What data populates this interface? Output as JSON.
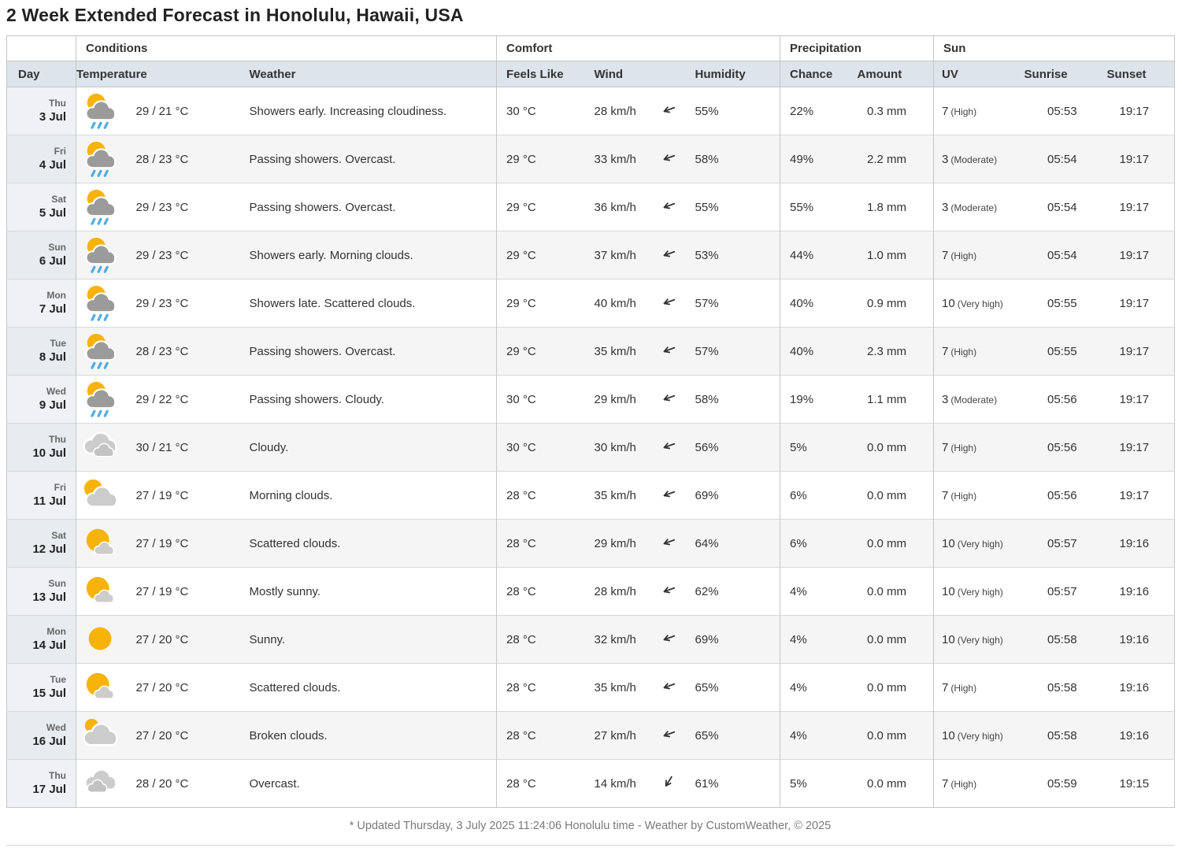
{
  "page_title": "2 Week Extended Forecast in Honolulu, Hawaii, USA",
  "colors": {
    "sun_yellow": "#F8B309",
    "cloud_dark": "#9B9B9B",
    "cloud_light": "#CCCCCC",
    "cloud_mid": "#C2C2C2",
    "rain_blue": "#4FAEE3",
    "header_bg": "#DEE4EB",
    "arrow": "#333333"
  },
  "table": {
    "group_headers": {
      "conditions": "Conditions",
      "comfort": "Comfort",
      "precipitation": "Precipitation",
      "sun": "Sun"
    },
    "columns": {
      "day": "Day",
      "temperature": "Temperature",
      "weather": "Weather",
      "feels_like": "Feels Like",
      "wind": "Wind",
      "humidity": "Humidity",
      "chance": "Chance",
      "amount": "Amount",
      "uv": "UV",
      "sunrise": "Sunrise",
      "sunset": "Sunset"
    },
    "rows": [
      {
        "day_name": "Thu",
        "date": "3 Jul",
        "icon": "showers",
        "temperature": "29 / 21 °C",
        "weather": "Showers early. Increasing cloudiness.",
        "feels_like": "30 °C",
        "wind": "28 km/h",
        "wind_arrow_rotation": -20,
        "humidity": "55%",
        "chance": "22%",
        "amount": "0.3 mm",
        "uv_value": "7",
        "uv_label": "(High)",
        "sunrise": "05:53",
        "sunset": "19:17"
      },
      {
        "day_name": "Fri",
        "date": "4 Jul",
        "icon": "showers",
        "temperature": "28 / 23 °C",
        "weather": "Passing showers. Overcast.",
        "feels_like": "29 °C",
        "wind": "33 km/h",
        "wind_arrow_rotation": -20,
        "humidity": "58%",
        "chance": "49%",
        "amount": "2.2 mm",
        "uv_value": "3",
        "uv_label": "(Moderate)",
        "sunrise": "05:54",
        "sunset": "19:17"
      },
      {
        "day_name": "Sat",
        "date": "5 Jul",
        "icon": "showers",
        "temperature": "29 / 23 °C",
        "weather": "Passing showers. Overcast.",
        "feels_like": "29 °C",
        "wind": "36 km/h",
        "wind_arrow_rotation": -20,
        "humidity": "55%",
        "chance": "55%",
        "amount": "1.8 mm",
        "uv_value": "3",
        "uv_label": "(Moderate)",
        "sunrise": "05:54",
        "sunset": "19:17"
      },
      {
        "day_name": "Sun",
        "date": "6 Jul",
        "icon": "showers",
        "temperature": "29 / 23 °C",
        "weather": "Showers early. Morning clouds.",
        "feels_like": "29 °C",
        "wind": "37 km/h",
        "wind_arrow_rotation": -20,
        "humidity": "53%",
        "chance": "44%",
        "amount": "1.0 mm",
        "uv_value": "7",
        "uv_label": "(High)",
        "sunrise": "05:54",
        "sunset": "19:17"
      },
      {
        "day_name": "Mon",
        "date": "7 Jul",
        "icon": "showers",
        "temperature": "29 / 23 °C",
        "weather": "Showers late. Scattered clouds.",
        "feels_like": "29 °C",
        "wind": "40 km/h",
        "wind_arrow_rotation": -20,
        "humidity": "57%",
        "chance": "40%",
        "amount": "0.9 mm",
        "uv_value": "10",
        "uv_label": "(Very high)",
        "sunrise": "05:55",
        "sunset": "19:17"
      },
      {
        "day_name": "Tue",
        "date": "8 Jul",
        "icon": "showers",
        "temperature": "28 / 23 °C",
        "weather": "Passing showers. Overcast.",
        "feels_like": "29 °C",
        "wind": "35 km/h",
        "wind_arrow_rotation": -20,
        "humidity": "57%",
        "chance": "40%",
        "amount": "2.3 mm",
        "uv_value": "7",
        "uv_label": "(High)",
        "sunrise": "05:55",
        "sunset": "19:17"
      },
      {
        "day_name": "Wed",
        "date": "9 Jul",
        "icon": "showers",
        "temperature": "29 / 22 °C",
        "weather": "Passing showers. Cloudy.",
        "feels_like": "30 °C",
        "wind": "29 km/h",
        "wind_arrow_rotation": -20,
        "humidity": "58%",
        "chance": "19%",
        "amount": "1.1 mm",
        "uv_value": "3",
        "uv_label": "(Moderate)",
        "sunrise": "05:56",
        "sunset": "19:17"
      },
      {
        "day_name": "Thu",
        "date": "10 Jul",
        "icon": "cloudy",
        "temperature": "30 / 21 °C",
        "weather": "Cloudy.",
        "feels_like": "30 °C",
        "wind": "30 km/h",
        "wind_arrow_rotation": -20,
        "humidity": "56%",
        "chance": "5%",
        "amount": "0.0 mm",
        "uv_value": "7",
        "uv_label": "(High)",
        "sunrise": "05:56",
        "sunset": "19:17"
      },
      {
        "day_name": "Fri",
        "date": "11 Jul",
        "icon": "morning-clouds",
        "temperature": "27 / 19 °C",
        "weather": "Morning clouds.",
        "feels_like": "28 °C",
        "wind": "35 km/h",
        "wind_arrow_rotation": -20,
        "humidity": "69%",
        "chance": "6%",
        "amount": "0.0 mm",
        "uv_value": "7",
        "uv_label": "(High)",
        "sunrise": "05:56",
        "sunset": "19:17"
      },
      {
        "day_name": "Sat",
        "date": "12 Jul",
        "icon": "sun-small-cloud",
        "temperature": "27 / 19 °C",
        "weather": "Scattered clouds.",
        "feels_like": "28 °C",
        "wind": "29 km/h",
        "wind_arrow_rotation": -20,
        "humidity": "64%",
        "chance": "6%",
        "amount": "0.0 mm",
        "uv_value": "10",
        "uv_label": "(Very high)",
        "sunrise": "05:57",
        "sunset": "19:16"
      },
      {
        "day_name": "Sun",
        "date": "13 Jul",
        "icon": "sun-small-cloud",
        "temperature": "27 / 19 °C",
        "weather": "Mostly sunny.",
        "feels_like": "28 °C",
        "wind": "28 km/h",
        "wind_arrow_rotation": -20,
        "humidity": "62%",
        "chance": "4%",
        "amount": "0.0 mm",
        "uv_value": "10",
        "uv_label": "(Very high)",
        "sunrise": "05:57",
        "sunset": "19:16"
      },
      {
        "day_name": "Mon",
        "date": "14 Jul",
        "icon": "sunny",
        "temperature": "27 / 20 °C",
        "weather": "Sunny.",
        "feels_like": "28 °C",
        "wind": "32 km/h",
        "wind_arrow_rotation": -20,
        "humidity": "69%",
        "chance": "4%",
        "amount": "0.0 mm",
        "uv_value": "10",
        "uv_label": "(Very high)",
        "sunrise": "05:58",
        "sunset": "19:16"
      },
      {
        "day_name": "Tue",
        "date": "15 Jul",
        "icon": "sun-small-cloud",
        "temperature": "27 / 20 °C",
        "weather": "Scattered clouds.",
        "feels_like": "28 °C",
        "wind": "35 km/h",
        "wind_arrow_rotation": -20,
        "humidity": "65%",
        "chance": "4%",
        "amount": "0.0 mm",
        "uv_value": "7",
        "uv_label": "(High)",
        "sunrise": "05:58",
        "sunset": "19:16"
      },
      {
        "day_name": "Wed",
        "date": "16 Jul",
        "icon": "broken-clouds",
        "temperature": "27 / 20 °C",
        "weather": "Broken clouds.",
        "feels_like": "28 °C",
        "wind": "27 km/h",
        "wind_arrow_rotation": -20,
        "humidity": "65%",
        "chance": "4%",
        "amount": "0.0 mm",
        "uv_value": "10",
        "uv_label": "(Very high)",
        "sunrise": "05:58",
        "sunset": "19:16"
      },
      {
        "day_name": "Thu",
        "date": "17 Jul",
        "icon": "overcast",
        "temperature": "28 / 20 °C",
        "weather": "Overcast.",
        "feels_like": "28 °C",
        "wind": "14 km/h",
        "wind_arrow_rotation": -58,
        "humidity": "61%",
        "chance": "5%",
        "amount": "0.0 mm",
        "uv_value": "7",
        "uv_label": "(High)",
        "sunrise": "05:59",
        "sunset": "19:15"
      }
    ]
  },
  "footer": {
    "updated_text": "* Updated Thursday, 3 July 2025 11:24:06 Honolulu time - Weather by CustomWeather, © 2025"
  }
}
